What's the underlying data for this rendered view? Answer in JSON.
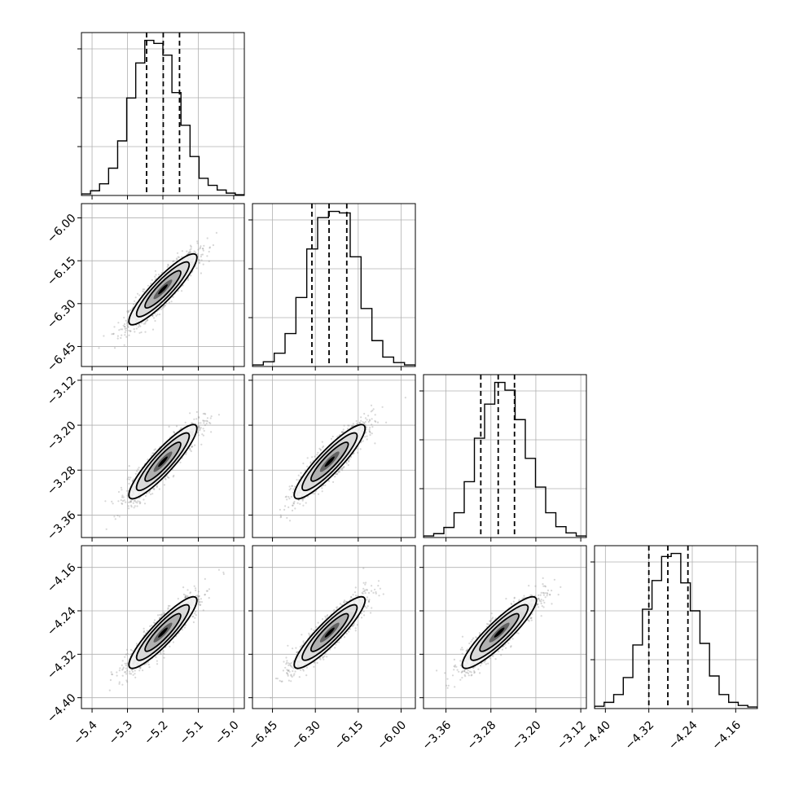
{
  "chart_data": {
    "type": "corner",
    "grid": true,
    "parameters": [
      {
        "ticks": [
          -5.4,
          -5.3,
          -5.2,
          -5.1,
          -5.0
        ],
        "tick_labels": [
          "−5.4",
          "−5.3",
          "−5.2",
          "−5.1",
          "−5.0"
        ],
        "range": [
          -5.43,
          -4.97
        ],
        "mean": -5.2,
        "sd": 0.048,
        "quantiles": [
          -5.246,
          -5.199,
          -5.153
        ]
      },
      {
        "ticks": [
          -6.45,
          -6.3,
          -6.15,
          -6.0
        ],
        "tick_labels": [
          "−6.45",
          "−6.30",
          "−6.15",
          "−6.00"
        ],
        "range": [
          -6.52,
          -5.95
        ],
        "mean": -6.25,
        "sd": 0.062,
        "quantiles": [
          -6.312,
          -6.252,
          -6.19
        ]
      },
      {
        "ticks": [
          -3.36,
          -3.28,
          -3.2,
          -3.12
        ],
        "tick_labels": [
          "−3.36",
          "−3.28",
          "−3.20",
          "−3.12"
        ],
        "range": [
          -3.4,
          -3.11
        ],
        "mean": -3.265,
        "sd": 0.033,
        "quantiles": [
          -3.298,
          -3.267,
          -3.238
        ]
      },
      {
        "ticks": [
          -4.4,
          -4.32,
          -4.24,
          -4.16
        ],
        "tick_labels": [
          "−4.40",
          "−4.32",
          "−4.24",
          "−4.16"
        ],
        "range": [
          -4.42,
          -4.12
        ],
        "mean": -4.28,
        "sd": 0.033,
        "quantiles": [
          -4.32,
          -4.285,
          -4.248
        ]
      }
    ],
    "correlation": 0.9,
    "histograms": [
      {
        "counts": [
          2,
          6,
          15,
          35,
          70,
          125,
          170,
          199,
          195,
          180,
          132,
          90,
          50,
          22,
          13,
          7,
          3,
          1
        ]
      },
      {
        "counts": [
          2,
          6,
          17,
          42,
          88,
          150,
          190,
          198,
          196,
          140,
          74,
          33,
          12,
          5,
          2
        ]
      },
      {
        "counts": [
          2,
          5,
          13,
          32,
          72,
          128,
          172,
          200,
          190,
          152,
          102,
          65,
          32,
          14,
          6,
          2
        ]
      },
      {
        "counts": [
          3,
          8,
          18,
          40,
          82,
          128,
          165,
          196,
          200,
          162,
          126,
          84,
          42,
          18,
          8,
          4,
          2
        ]
      }
    ]
  }
}
